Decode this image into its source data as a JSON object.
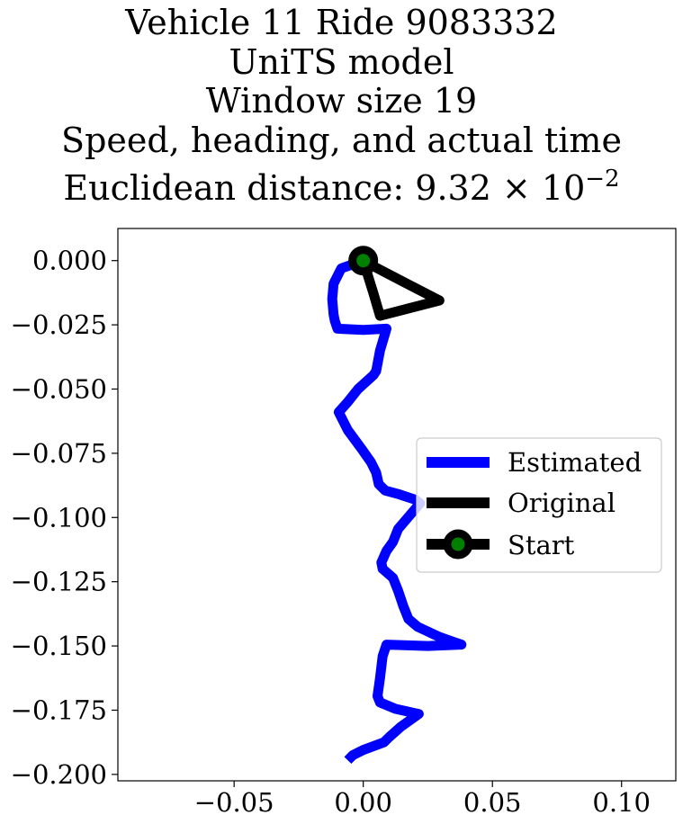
{
  "chart_data": {
    "type": "line",
    "title_lines": [
      "Vehicle 11 Ride 9083332",
      "UniTS model",
      "Window size 19",
      "Speed, heading, and actual time"
    ],
    "title_distance_prefix": "Euclidean distance: 9.32",
    "title_distance_times": "×",
    "title_distance_base": "10",
    "title_distance_exponent": "−2",
    "xlim": [
      -0.095,
      0.121
    ],
    "ylim": [
      -0.2025,
      0.0125
    ],
    "x_ticks": [
      -0.05,
      0.0,
      0.05,
      0.1
    ],
    "x_tick_labels": [
      "−0.05",
      "0.00",
      "0.05",
      "0.10"
    ],
    "y_ticks": [
      0.0,
      -0.025,
      -0.05,
      -0.075,
      -0.1,
      -0.125,
      -0.15,
      -0.175,
      -0.2
    ],
    "y_tick_labels": [
      "0.000",
      "−0.025",
      "−0.050",
      "−0.075",
      "−0.100",
      "−0.125",
      "−0.150",
      "−0.175",
      "−0.200"
    ],
    "grid": false,
    "legend_position": "center-right",
    "series": [
      {
        "name": "Estimated",
        "color": "#0000ff",
        "points": [
          [
            0.0,
            0.0
          ],
          [
            -0.0085,
            -0.003
          ],
          [
            -0.0115,
            -0.009
          ],
          [
            -0.012,
            -0.015
          ],
          [
            -0.0115,
            -0.021
          ],
          [
            -0.011,
            -0.0235
          ],
          [
            -0.01,
            -0.0265
          ],
          [
            0.0,
            -0.027
          ],
          [
            0.009,
            -0.0265
          ],
          [
            0.0065,
            -0.035
          ],
          [
            0.005,
            -0.043
          ],
          [
            0.004,
            -0.0445
          ],
          [
            -0.002,
            -0.05
          ],
          [
            -0.006,
            -0.055
          ],
          [
            -0.0095,
            -0.059
          ],
          [
            -0.006,
            -0.066
          ],
          [
            -0.0005,
            -0.0735
          ],
          [
            0.003,
            -0.0785
          ],
          [
            0.005,
            -0.0825
          ],
          [
            0.006,
            -0.087
          ],
          [
            0.0085,
            -0.0895
          ],
          [
            0.014,
            -0.091
          ],
          [
            0.02,
            -0.093
          ],
          [
            0.022,
            -0.0945
          ],
          [
            0.019,
            -0.098
          ],
          [
            0.0135,
            -0.1045
          ],
          [
            0.0115,
            -0.1095
          ],
          [
            0.009,
            -0.113
          ],
          [
            0.007,
            -0.1175
          ],
          [
            0.0075,
            -0.12
          ],
          [
            0.0115,
            -0.1235
          ],
          [
            0.0135,
            -0.1285
          ],
          [
            0.0155,
            -0.1345
          ],
          [
            0.0175,
            -0.1395
          ],
          [
            0.021,
            -0.1425
          ],
          [
            0.0295,
            -0.1465
          ],
          [
            0.038,
            -0.1495
          ],
          [
            0.025,
            -0.15
          ],
          [
            0.009,
            -0.1495
          ],
          [
            0.0075,
            -0.154
          ],
          [
            0.0065,
            -0.1625
          ],
          [
            0.0055,
            -0.1695
          ],
          [
            0.0065,
            -0.172
          ],
          [
            0.0125,
            -0.1745
          ],
          [
            0.0215,
            -0.1765
          ],
          [
            0.0145,
            -0.1815
          ],
          [
            0.01,
            -0.1855
          ],
          [
            0.008,
            -0.1875
          ],
          [
            0.0,
            -0.1905
          ],
          [
            -0.004,
            -0.1925
          ],
          [
            -0.006,
            -0.1945
          ]
        ]
      },
      {
        "name": "Original",
        "color": "#000000",
        "points": [
          [
            0.0,
            0.0
          ],
          [
            0.0055,
            -0.003
          ],
          [
            0.016,
            -0.0085
          ],
          [
            0.0295,
            -0.0155
          ],
          [
            0.018,
            -0.0185
          ],
          [
            0.0065,
            -0.0215
          ],
          [
            0.004,
            -0.013
          ],
          [
            0.0,
            0.0
          ]
        ]
      }
    ],
    "start": {
      "name": "Start",
      "x": 0.0,
      "y": 0.0,
      "edge_color": "#000000",
      "face_color": "#008000"
    }
  }
}
